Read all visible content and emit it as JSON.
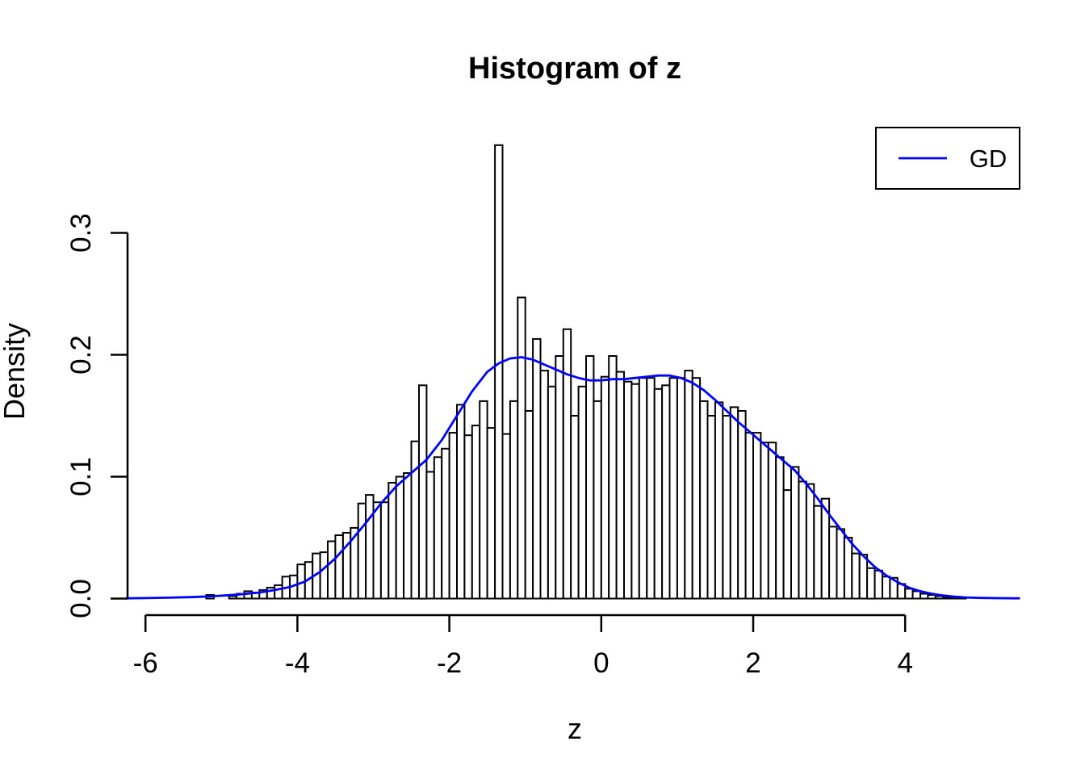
{
  "title": "Histogram of z",
  "xlabel": "z",
  "ylabel": "Density",
  "legend": {
    "label": "GD",
    "line_color": "#0000ff",
    "position": "topright"
  },
  "colors": {
    "bar_fill": "#ffffff",
    "bar_border": "#000000",
    "curve": "#0000ff",
    "axis": "#000000",
    "text": "#000000",
    "background": "#ffffff"
  },
  "axes": {
    "x": {
      "ticks": [
        -6,
        -4,
        -2,
        0,
        2,
        4
      ],
      "tick_labels": [
        "-6",
        "-4",
        "-2",
        "0",
        "2",
        "4"
      ]
    },
    "y": {
      "ticks": [
        0.0,
        0.1,
        0.2,
        0.3
      ],
      "tick_labels": [
        "0.0",
        "0.1",
        "0.2",
        "0.3"
      ]
    }
  },
  "chart_data": {
    "type": "bar",
    "subtype": "histogram-with-density-curve",
    "title": "Histogram of z",
    "xlabel": "z",
    "ylabel": "Density",
    "xlim": [
      -6,
      4
    ],
    "ylim": [
      0,
      0.3
    ],
    "grid": false,
    "legend_position": "topright",
    "bin_width": 0.1,
    "bins": [
      [
        -5.2,
        0.003
      ],
      [
        -5.1,
        0
      ],
      [
        -5.0,
        0
      ],
      [
        -4.9,
        0.002
      ],
      [
        -4.8,
        0.004
      ],
      [
        -4.7,
        0.006
      ],
      [
        -4.6,
        0.005
      ],
      [
        -4.5,
        0.007
      ],
      [
        -4.4,
        0.009
      ],
      [
        -4.3,
        0.011
      ],
      [
        -4.2,
        0.018
      ],
      [
        -4.1,
        0.019
      ],
      [
        -4.0,
        0.028
      ],
      [
        -3.9,
        0.03
      ],
      [
        -3.8,
        0.037
      ],
      [
        -3.7,
        0.038
      ],
      [
        -3.6,
        0.047
      ],
      [
        -3.5,
        0.052
      ],
      [
        -3.4,
        0.054
      ],
      [
        -3.3,
        0.058
      ],
      [
        -3.2,
        0.078
      ],
      [
        -3.1,
        0.085
      ],
      [
        -3.0,
        0.079
      ],
      [
        -2.9,
        0.079
      ],
      [
        -2.8,
        0.095
      ],
      [
        -2.7,
        0.1
      ],
      [
        -2.6,
        0.103
      ],
      [
        -2.5,
        0.129
      ],
      [
        -2.4,
        0.175
      ],
      [
        -2.3,
        0.104
      ],
      [
        -2.2,
        0.116
      ],
      [
        -2.1,
        0.123
      ],
      [
        -2.0,
        0.136
      ],
      [
        -1.9,
        0.159
      ],
      [
        -1.8,
        0.134
      ],
      [
        -1.7,
        0.142
      ],
      [
        -1.6,
        0.162
      ],
      [
        -1.5,
        0.14
      ],
      [
        -1.4,
        0.372
      ],
      [
        -1.3,
        0.135
      ],
      [
        -1.2,
        0.162
      ],
      [
        -1.1,
        0.247
      ],
      [
        -1.0,
        0.154
      ],
      [
        -0.9,
        0.213
      ],
      [
        -0.8,
        0.187
      ],
      [
        -0.7,
        0.174
      ],
      [
        -0.6,
        0.199
      ],
      [
        -0.5,
        0.221
      ],
      [
        -0.4,
        0.15
      ],
      [
        -0.3,
        0.174
      ],
      [
        -0.2,
        0.199
      ],
      [
        -0.1,
        0.162
      ],
      [
        0.0,
        0.182
      ],
      [
        0.1,
        0.199
      ],
      [
        0.2,
        0.186
      ],
      [
        0.3,
        0.178
      ],
      [
        0.4,
        0.176
      ],
      [
        0.5,
        0.181
      ],
      [
        0.6,
        0.181
      ],
      [
        0.7,
        0.172
      ],
      [
        0.8,
        0.175
      ],
      [
        0.9,
        0.181
      ],
      [
        1.0,
        0.181
      ],
      [
        1.1,
        0.187
      ],
      [
        1.2,
        0.181
      ],
      [
        1.3,
        0.162
      ],
      [
        1.4,
        0.15
      ],
      [
        1.5,
        0.161
      ],
      [
        1.6,
        0.15
      ],
      [
        1.7,
        0.157
      ],
      [
        1.8,
        0.154
      ],
      [
        1.9,
        0.136
      ],
      [
        2.0,
        0.136
      ],
      [
        2.1,
        0.128
      ],
      [
        2.2,
        0.128
      ],
      [
        2.3,
        0.116
      ],
      [
        2.4,
        0.089
      ],
      [
        2.5,
        0.108
      ],
      [
        2.6,
        0.096
      ],
      [
        2.7,
        0.094
      ],
      [
        2.8,
        0.076
      ],
      [
        2.9,
        0.082
      ],
      [
        3.0,
        0.059
      ],
      [
        3.1,
        0.057
      ],
      [
        3.2,
        0.05
      ],
      [
        3.3,
        0.037
      ],
      [
        3.4,
        0.036
      ],
      [
        3.5,
        0.025
      ],
      [
        3.6,
        0.023
      ],
      [
        3.7,
        0.018
      ],
      [
        3.8,
        0.017
      ],
      [
        3.9,
        0.012
      ],
      [
        4.0,
        0.008
      ],
      [
        4.1,
        0.006
      ],
      [
        4.2,
        0.004
      ],
      [
        4.3,
        0.003
      ],
      [
        4.4,
        0.002
      ],
      [
        4.5,
        0.001
      ],
      [
        4.6,
        0.001
      ],
      [
        4.7,
        0.0005
      ]
    ],
    "density_curve": {
      "name": "GD",
      "color": "#0000ff",
      "points": [
        [
          -6.25,
          0.0002
        ],
        [
          -6.0,
          0.0004
        ],
        [
          -5.7,
          0.0007
        ],
        [
          -5.4,
          0.0012
        ],
        [
          -5.1,
          0.002
        ],
        [
          -4.8,
          0.0032
        ],
        [
          -4.5,
          0.005
        ],
        [
          -4.3,
          0.007
        ],
        [
          -4.1,
          0.0095
        ],
        [
          -3.9,
          0.014
        ],
        [
          -3.7,
          0.022
        ],
        [
          -3.5,
          0.033
        ],
        [
          -3.3,
          0.047
        ],
        [
          -3.1,
          0.062
        ],
        [
          -2.9,
          0.078
        ],
        [
          -2.7,
          0.092
        ],
        [
          -2.5,
          0.103
        ],
        [
          -2.3,
          0.114
        ],
        [
          -2.1,
          0.13
        ],
        [
          -1.9,
          0.15
        ],
        [
          -1.7,
          0.17
        ],
        [
          -1.5,
          0.186
        ],
        [
          -1.35,
          0.193
        ],
        [
          -1.2,
          0.197
        ],
        [
          -1.05,
          0.198
        ],
        [
          -0.9,
          0.196
        ],
        [
          -0.75,
          0.192
        ],
        [
          -0.6,
          0.188
        ],
        [
          -0.45,
          0.184
        ],
        [
          -0.3,
          0.181
        ],
        [
          -0.15,
          0.179
        ],
        [
          0.0,
          0.179
        ],
        [
          0.15,
          0.18
        ],
        [
          0.3,
          0.18
        ],
        [
          0.45,
          0.181
        ],
        [
          0.6,
          0.182
        ],
        [
          0.75,
          0.183
        ],
        [
          0.9,
          0.183
        ],
        [
          1.05,
          0.181
        ],
        [
          1.2,
          0.177
        ],
        [
          1.35,
          0.171
        ],
        [
          1.5,
          0.163
        ],
        [
          1.65,
          0.154
        ],
        [
          1.8,
          0.145
        ],
        [
          1.95,
          0.137
        ],
        [
          2.1,
          0.129
        ],
        [
          2.25,
          0.121
        ],
        [
          2.4,
          0.113
        ],
        [
          2.55,
          0.105
        ],
        [
          2.7,
          0.094
        ],
        [
          2.85,
          0.082
        ],
        [
          3.0,
          0.069
        ],
        [
          3.15,
          0.057
        ],
        [
          3.3,
          0.045
        ],
        [
          3.45,
          0.035
        ],
        [
          3.6,
          0.026
        ],
        [
          3.75,
          0.019
        ],
        [
          3.9,
          0.0135
        ],
        [
          4.05,
          0.009
        ],
        [
          4.2,
          0.006
        ],
        [
          4.35,
          0.004
        ],
        [
          4.5,
          0.0025
        ],
        [
          4.65,
          0.0015
        ],
        [
          4.8,
          0.0009
        ],
        [
          5.0,
          0.0005
        ],
        [
          5.25,
          0.0003
        ],
        [
          5.5,
          0.0002
        ]
      ]
    }
  }
}
